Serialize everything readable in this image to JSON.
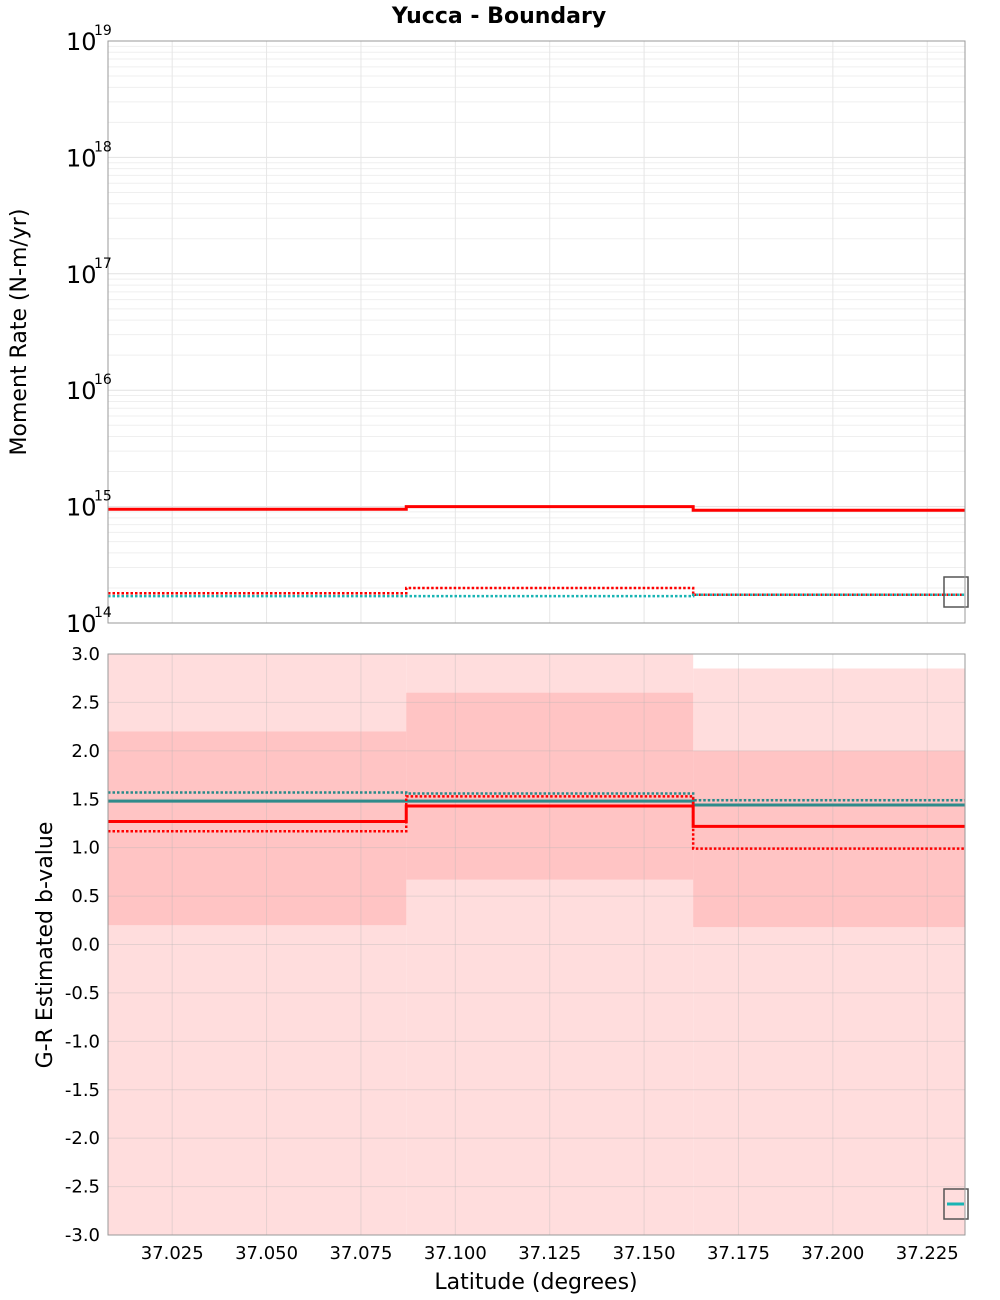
{
  "chart_data": [
    {
      "type": "line",
      "title": "Yucca - Boundary",
      "ylabel": "Moment Rate (N-m/yr)",
      "yscale": "log",
      "ylim": [
        100000000000000.0,
        1e+19
      ],
      "xlim": [
        37.008,
        37.235
      ],
      "grid": true,
      "y_ticks": [
        {
          "base": "10",
          "exp": "14",
          "value": 100000000000000.0
        },
        {
          "base": "10",
          "exp": "15",
          "value": 1000000000000000.0
        },
        {
          "base": "10",
          "exp": "16",
          "value": 1e+16
        },
        {
          "base": "10",
          "exp": "17",
          "value": 1e+17
        },
        {
          "base": "10",
          "exp": "18",
          "value": 1e+18
        },
        {
          "base": "10",
          "exp": "19",
          "value": 1e+19
        }
      ],
      "x_edges": [
        37.008,
        37.087,
        37.163,
        37.235
      ],
      "series": [
        {
          "name": "red-solid",
          "color": "#ff0000",
          "style": "solid",
          "values": [
            950000000000000.0,
            1000000000000000.0,
            930000000000000.0
          ]
        },
        {
          "name": "red-dotted",
          "color": "#ff0000",
          "style": "dotted",
          "values": [
            180000000000000.0,
            200000000000000.0,
            175000000000000.0
          ]
        },
        {
          "name": "teal-dotted",
          "color": "#19b4b4",
          "style": "dotted",
          "values": [
            170000000000000.0,
            170000000000000.0,
            175000000000000.0
          ]
        }
      ]
    },
    {
      "type": "line",
      "title": "",
      "xlabel": "Latitude (degrees)",
      "ylabel": "G-R Estimated b-value",
      "ylim": [
        -3.0,
        3.0
      ],
      "xlim": [
        37.008,
        37.235
      ],
      "grid": true,
      "y_ticks": [
        "-3.0",
        "-2.5",
        "-2.0",
        "-1.5",
        "-1.0",
        "-0.5",
        "0.0",
        "0.5",
        "1.0",
        "1.5",
        "2.0",
        "2.5",
        "3.0"
      ],
      "x_ticks": [
        "37.025",
        "37.050",
        "37.075",
        "37.100",
        "37.125",
        "37.150",
        "37.175",
        "37.200",
        "37.225"
      ],
      "x_edges": [
        37.008,
        37.087,
        37.163,
        37.235
      ],
      "bands": [
        {
          "name": "outer-band",
          "color": "#ffdddd",
          "lower": [
            -3.0,
            -3.0,
            -3.0
          ],
          "upper": [
            3.0,
            3.0,
            2.85
          ]
        },
        {
          "name": "inner-band",
          "color": "#ffc4c4",
          "lower": [
            0.2,
            0.67,
            0.18
          ],
          "upper": [
            2.2,
            2.6,
            2.0
          ]
        }
      ],
      "series": [
        {
          "name": "teal-dotted",
          "color": "#2a8a8a",
          "style": "dotted",
          "values": [
            1.57,
            1.56,
            1.49
          ]
        },
        {
          "name": "teal-solid",
          "color": "#2e8b8b",
          "style": "solid",
          "values": [
            1.48,
            1.48,
            1.44
          ]
        },
        {
          "name": "red-dotted",
          "color": "#ff0000",
          "style": "dotted",
          "values": [
            1.17,
            1.53,
            0.99
          ]
        },
        {
          "name": "red-solid",
          "color": "#ff0000",
          "style": "solid",
          "values": [
            1.27,
            1.43,
            1.22
          ]
        }
      ]
    }
  ]
}
